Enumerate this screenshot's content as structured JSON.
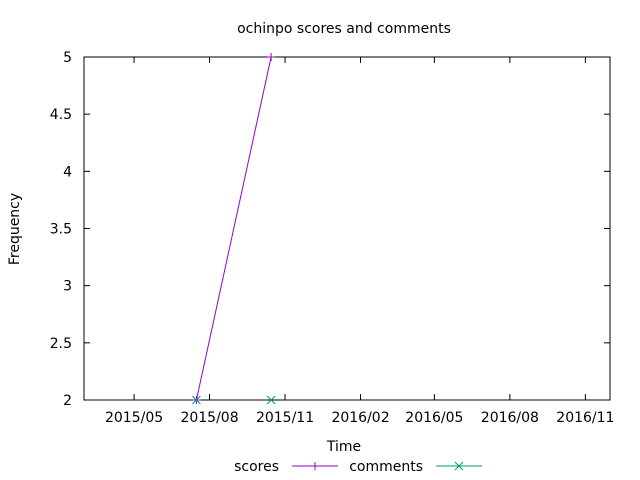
{
  "chart_data": {
    "type": "line",
    "title": "ochinpo scores and comments",
    "xlabel": "Time",
    "ylabel": "Frequency",
    "x_tick_labels": [
      "2015/05",
      "2015/08",
      "2015/11",
      "2016/02",
      "2016/05",
      "2016/08",
      "2016/11"
    ],
    "y_tick_labels": [
      "2",
      "2.5",
      "3",
      "3.5",
      "4",
      "4.5",
      "5"
    ],
    "ylim": [
      2,
      5
    ],
    "xlim": [
      "2015-03-01",
      "2016-12-01"
    ],
    "grid": false,
    "legend_position": "bottom",
    "series": [
      {
        "name": "scores",
        "color": "#9400d3",
        "marker": "plus",
        "points": [
          {
            "x": "2015-07-16",
            "y": 2
          },
          {
            "x": "2015-10-15",
            "y": 5
          }
        ]
      },
      {
        "name": "comments",
        "color": "#009e73",
        "marker": "cross",
        "points": [
          {
            "x": "2015-07-16",
            "y": 2
          },
          {
            "x": "2015-10-15",
            "y": 2
          }
        ]
      }
    ]
  }
}
